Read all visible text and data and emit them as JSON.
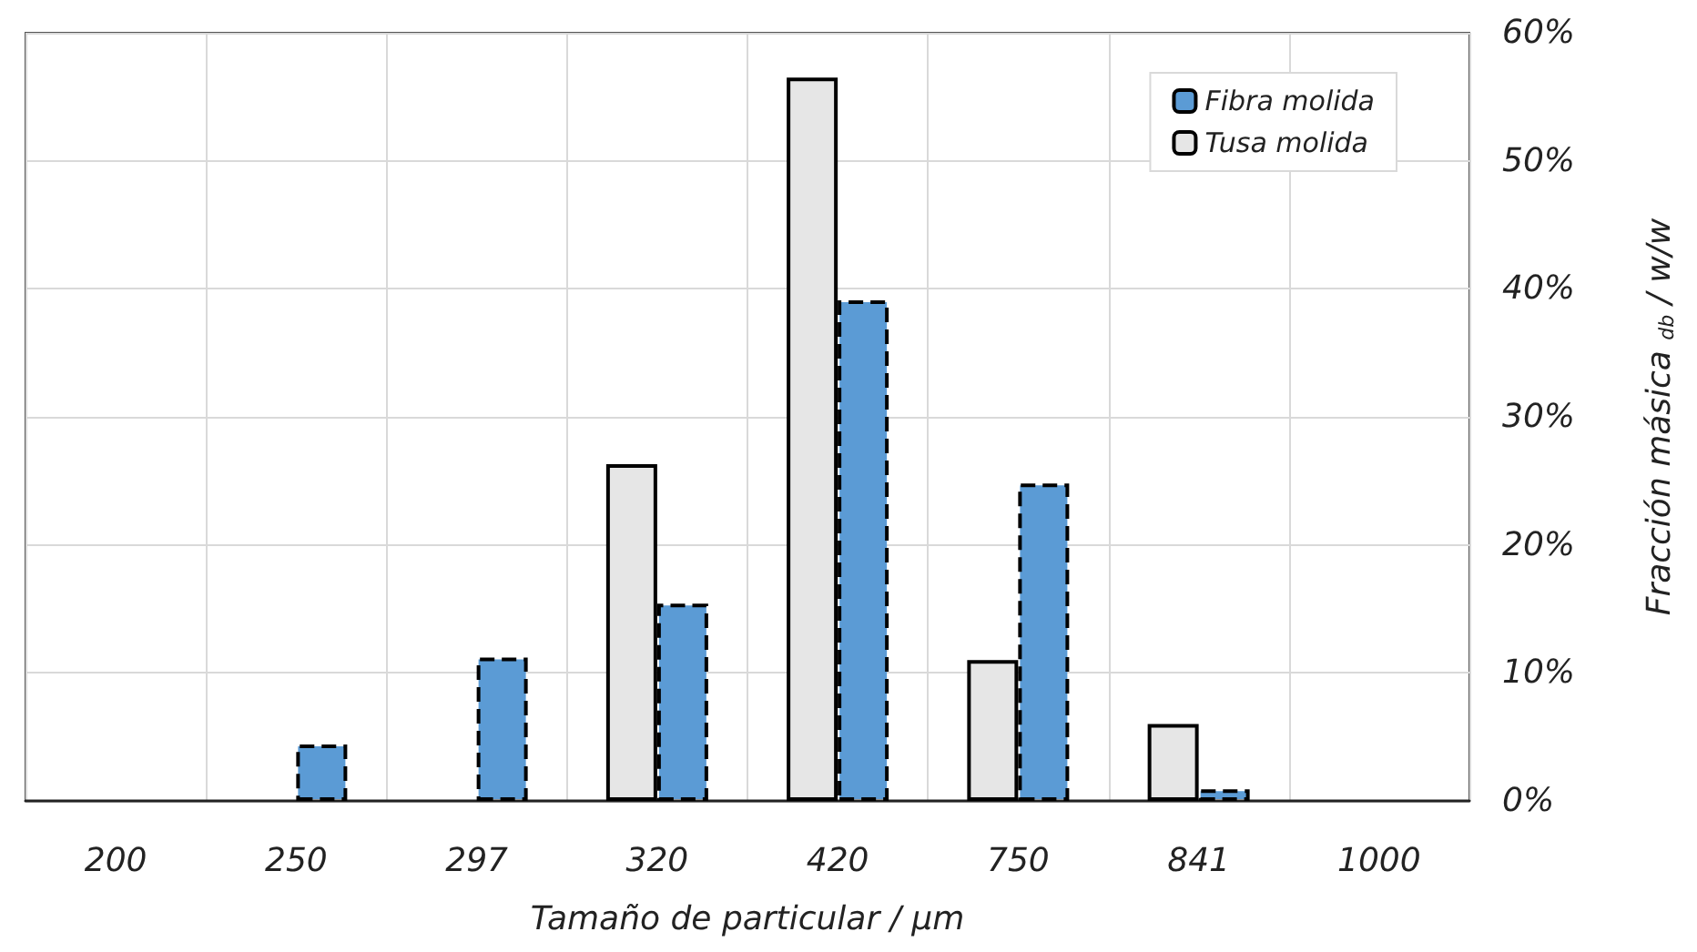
{
  "chart_data": {
    "type": "bar",
    "xlabel": "Tamaño de particular / µm",
    "ylabel": "Fracción másica $_{db}$ / w/w",
    "categories": [
      "200",
      "250",
      "297",
      "320",
      "420",
      "750",
      "841",
      "1000"
    ],
    "series": [
      {
        "name": "Tusa molida",
        "color": "#e6e6e6",
        "values": [
          null,
          null,
          null,
          26.3,
          56.5,
          11.0,
          6.0,
          null
        ]
      },
      {
        "name": "Fibra molida",
        "color": "#5b9bd5",
        "values": [
          null,
          4.4,
          11.2,
          15.4,
          39.1,
          24.8,
          0.9,
          null
        ]
      }
    ],
    "ylim": [
      0,
      60
    ],
    "yticks": [
      {
        "value": 0,
        "label": "0%"
      },
      {
        "value": 10,
        "label": "10%"
      },
      {
        "value": 20,
        "label": "20%"
      },
      {
        "value": 30,
        "label": "30%"
      },
      {
        "value": 40,
        "label": "40%"
      },
      {
        "value": 50,
        "label": "50%"
      },
      {
        "value": 60,
        "label": "60%"
      }
    ],
    "grid": true,
    "legend": "top right"
  }
}
